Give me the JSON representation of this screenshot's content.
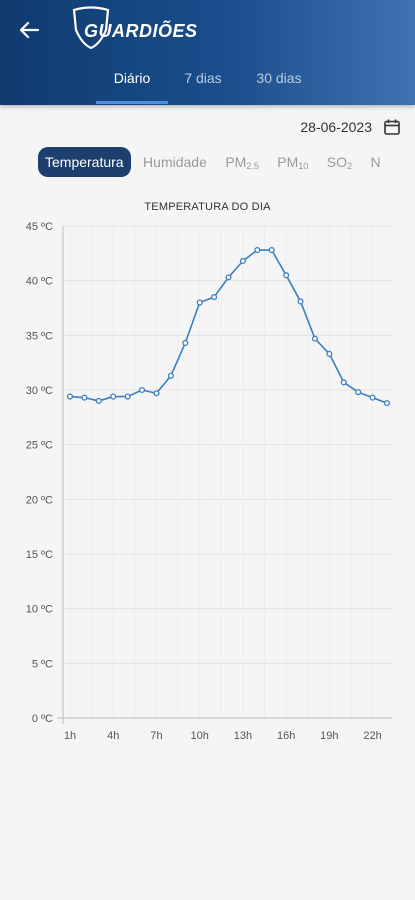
{
  "header": {
    "logo_text": "GUARDIÕES",
    "tabs": [
      {
        "label": "Diário",
        "active": true
      },
      {
        "label": "7 dias",
        "active": false
      },
      {
        "label": "30 dias",
        "active": false
      }
    ]
  },
  "date": "28-06-2023",
  "chips": [
    {
      "label": "Temperatura",
      "sub": "",
      "active": true
    },
    {
      "label": "Humidade",
      "sub": "",
      "active": false
    },
    {
      "label": "PM",
      "sub": "2.5",
      "active": false
    },
    {
      "label": "PM",
      "sub": "10",
      "active": false
    },
    {
      "label": "SO",
      "sub": "2",
      "active": false
    },
    {
      "label": "N",
      "sub": "",
      "active": false
    }
  ],
  "colors": {
    "header_start": "#0f3a6e",
    "header_end": "#3f73b0",
    "accent": "#4a90e2",
    "chip_active": "#1c3f6e",
    "line": "#3a7fbf"
  },
  "chart_data": {
    "type": "line",
    "title": "TEMPERATURA DO DIA",
    "x": [
      1,
      2,
      3,
      4,
      5,
      6,
      7,
      8,
      9,
      10,
      11,
      12,
      13,
      14,
      15,
      16,
      17,
      18,
      19,
      20,
      21,
      22,
      23
    ],
    "x_tick_values": [
      1,
      4,
      7,
      10,
      13,
      16,
      19,
      22
    ],
    "x_tick_labels": [
      "1h",
      "4h",
      "7h",
      "10h",
      "13h",
      "16h",
      "19h",
      "22h"
    ],
    "series": [
      {
        "values": [
          29.4,
          29.3,
          29.0,
          29.4,
          29.4,
          30.0,
          29.7,
          31.3,
          34.3,
          38.0,
          38.5,
          40.3,
          41.8,
          42.8,
          42.8,
          40.5,
          38.1,
          34.7,
          33.3,
          30.7,
          29.8,
          29.3,
          28.8
        ]
      }
    ],
    "ylim": [
      0,
      45
    ],
    "y_ticks": [
      0,
      5,
      10,
      15,
      20,
      25,
      30,
      35,
      40,
      45
    ],
    "y_tick_labels": [
      "0 ºC",
      "5 ºC",
      "10 ºC",
      "15 ºC",
      "20 ºC",
      "25 ºC",
      "30 ºC",
      "35 ºC",
      "40 ºC",
      "45 ºC"
    ],
    "xlim": [
      1,
      23
    ],
    "grid": true
  }
}
